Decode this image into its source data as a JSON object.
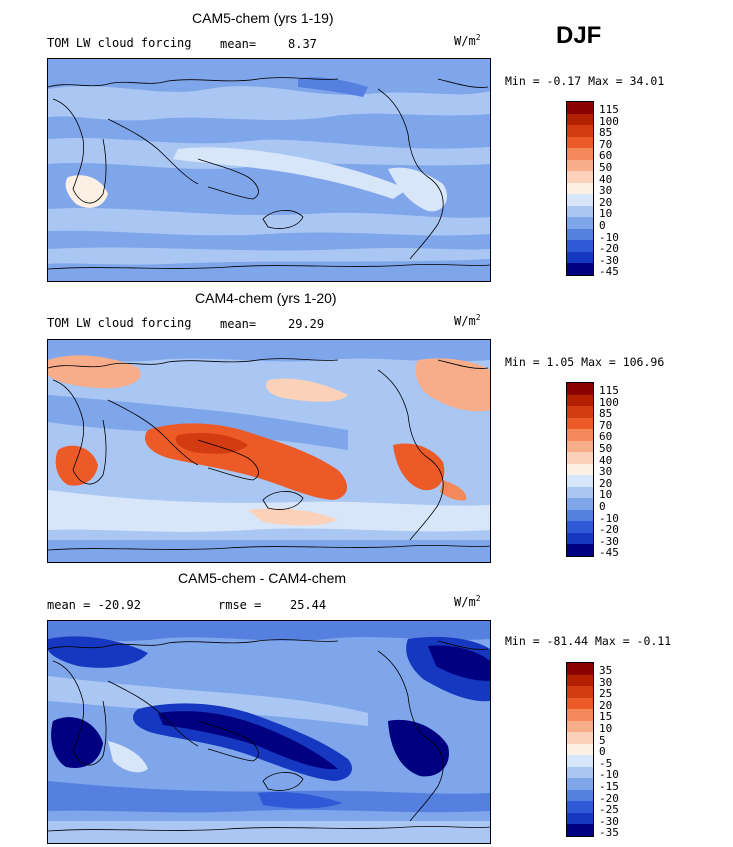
{
  "season": "DJF",
  "panels": [
    {
      "title": "CAM5-chem (yrs 1-19)",
      "left_label": "TOM LW cloud forcing",
      "stat_label": "mean=",
      "stat_value": "8.37",
      "units": "W/m",
      "units_sup": "2",
      "minmax": "Min =  -0.17 Max =  34.01",
      "colorbar_ticks": [
        "115",
        "100",
        "85",
        "70",
        "60",
        "50",
        "40",
        "30",
        "20",
        "10",
        "0",
        "-10",
        "-20",
        "-30",
        "-45"
      ],
      "colors": [
        "#8b0000",
        "#b22000",
        "#d33b10",
        "#ec5a28",
        "#f3885a",
        "#f7ad8a",
        "#fbd2b9",
        "#fcefe4",
        "#d8e6fa",
        "#a9c7f2",
        "#7fa5ea",
        "#5580e0",
        "#2f59d6",
        "#1638c0",
        "#000080"
      ]
    },
    {
      "title": "CAM4-chem (yrs 1-20)",
      "left_label": "TOM LW cloud forcing",
      "stat_label": "mean=",
      "stat_value": "29.29",
      "units": "W/m",
      "units_sup": "2",
      "minmax": "Min =   1.05 Max = 106.96",
      "colorbar_ticks": [
        "115",
        "100",
        "85",
        "70",
        "60",
        "50",
        "40",
        "30",
        "20",
        "10",
        "0",
        "-10",
        "-20",
        "-30",
        "-45"
      ],
      "colors": [
        "#8b0000",
        "#b22000",
        "#d33b10",
        "#ec5a28",
        "#f3885a",
        "#f7ad8a",
        "#fbd2b9",
        "#fcefe4",
        "#d8e6fa",
        "#a9c7f2",
        "#7fa5ea",
        "#5580e0",
        "#2f59d6",
        "#1638c0",
        "#000080"
      ]
    },
    {
      "title": "CAM5-chem - CAM4-chem",
      "left_label": "mean = -20.92",
      "stat_label": "rmse =",
      "stat_value": "25.44",
      "units": "W/m",
      "units_sup": "2",
      "minmax": "Min = -81.44 Max =  -0.11",
      "colorbar_ticks": [
        "35",
        "30",
        "25",
        "20",
        "15",
        "10",
        "5",
        "0",
        "-5",
        "-10",
        "-15",
        "-20",
        "-25",
        "-30",
        "-35"
      ],
      "colors": [
        "#8b0000",
        "#b22000",
        "#d33b10",
        "#ec5a28",
        "#f3885a",
        "#f7ad8a",
        "#fbd2b9",
        "#fcefe4",
        "#d8e6fa",
        "#a9c7f2",
        "#7fa5ea",
        "#5580e0",
        "#2f59d6",
        "#1638c0",
        "#000080"
      ]
    }
  ]
}
